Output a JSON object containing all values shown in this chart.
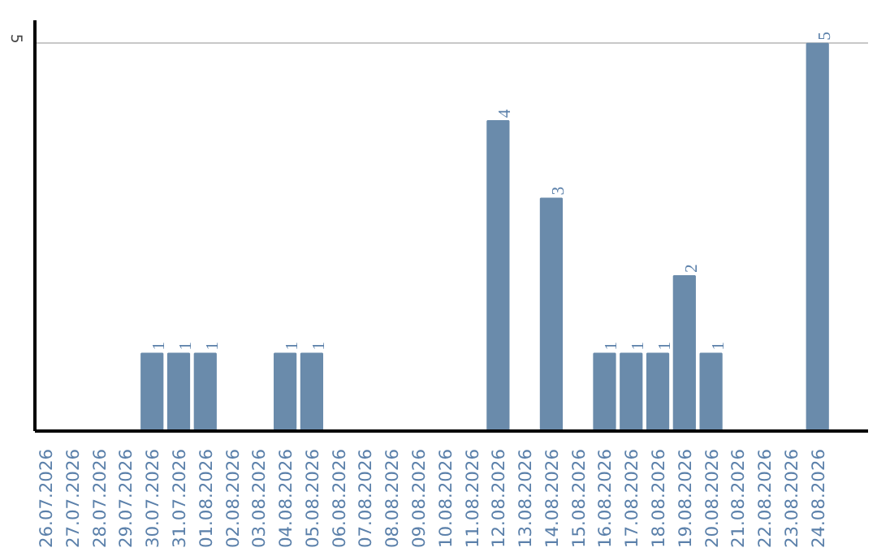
{
  "chart_data": {
    "type": "bar",
    "categories": [
      "26.07.2026",
      "27.07.2026",
      "28.07.2026",
      "29.07.2026",
      "30.07.2026",
      "31.07.2026",
      "01.08.2026",
      "02.08.2026",
      "03.08.2026",
      "04.08.2026",
      "05.08.2026",
      "06.08.2026",
      "07.08.2026",
      "08.08.2026",
      "09.08.2026",
      "10.08.2026",
      "11.08.2026",
      "12.08.2026",
      "13.08.2026",
      "14.08.2026",
      "15.08.2026",
      "16.08.2026",
      "17.08.2026",
      "18.08.2026",
      "19.08.2026",
      "20.08.2026",
      "21.08.2026",
      "22.08.2026",
      "23.08.2026",
      "24.08.2026"
    ],
    "values": [
      0,
      0,
      0,
      0,
      1,
      1,
      1,
      0,
      0,
      1,
      1,
      0,
      0,
      0,
      0,
      0,
      0,
      4,
      0,
      3,
      0,
      1,
      1,
      1,
      2,
      1,
      0,
      0,
      0,
      5
    ],
    "value_labels": [
      null,
      null,
      null,
      null,
      "1",
      "1",
      "1",
      null,
      null,
      "1",
      "1",
      null,
      null,
      null,
      null,
      null,
      null,
      "4",
      null,
      "3",
      null,
      "1",
      "1",
      "1",
      "2",
      "1",
      null,
      null,
      null,
      "5"
    ],
    "color": "#6a8bab",
    "ylim": [
      0,
      5.3
    ],
    "yticks": [
      5
    ],
    "grid": "y"
  }
}
